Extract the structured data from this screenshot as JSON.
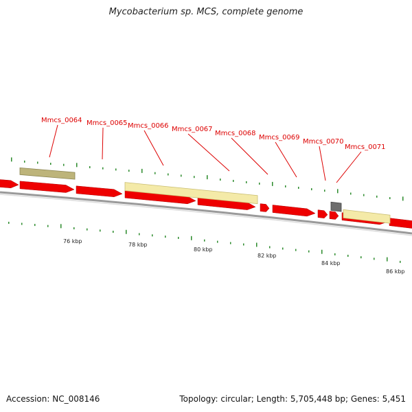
{
  "title": "Mycobacterium sp. MCS, complete genome",
  "footer": {
    "accession": "Accession: NC_008146",
    "summary": "Topology: circular; Length: 5,705,448 bp; Genes: 5,451"
  },
  "colors": {
    "gene_red": "#ee0000",
    "label_red": "#dd0000",
    "pale_yellow": "#f4eaa8",
    "olive": "#bdb47a",
    "gray_box": "#6e6e6e",
    "tick_green": "#2a8a2a",
    "backbone": "#9a9a9a"
  },
  "gene_labels": [
    {
      "id": "g64",
      "text": "Mmcs_0064"
    },
    {
      "id": "g65",
      "text": "Mmcs_0065"
    },
    {
      "id": "g66",
      "text": "Mmcs_0066"
    },
    {
      "id": "g67",
      "text": "Mmcs_0067"
    },
    {
      "id": "g68",
      "text": "Mmcs_0068"
    },
    {
      "id": "g69",
      "text": "Mmcs_0069"
    },
    {
      "id": "g70",
      "text": "Mmcs_0070"
    },
    {
      "id": "g71",
      "text": "Mmcs_0071"
    }
  ],
  "kbp_labels": [
    "76 kbp",
    "78 kbp",
    "80 kbp",
    "82 kbp",
    "84 kbp",
    "86 kbp"
  ]
}
